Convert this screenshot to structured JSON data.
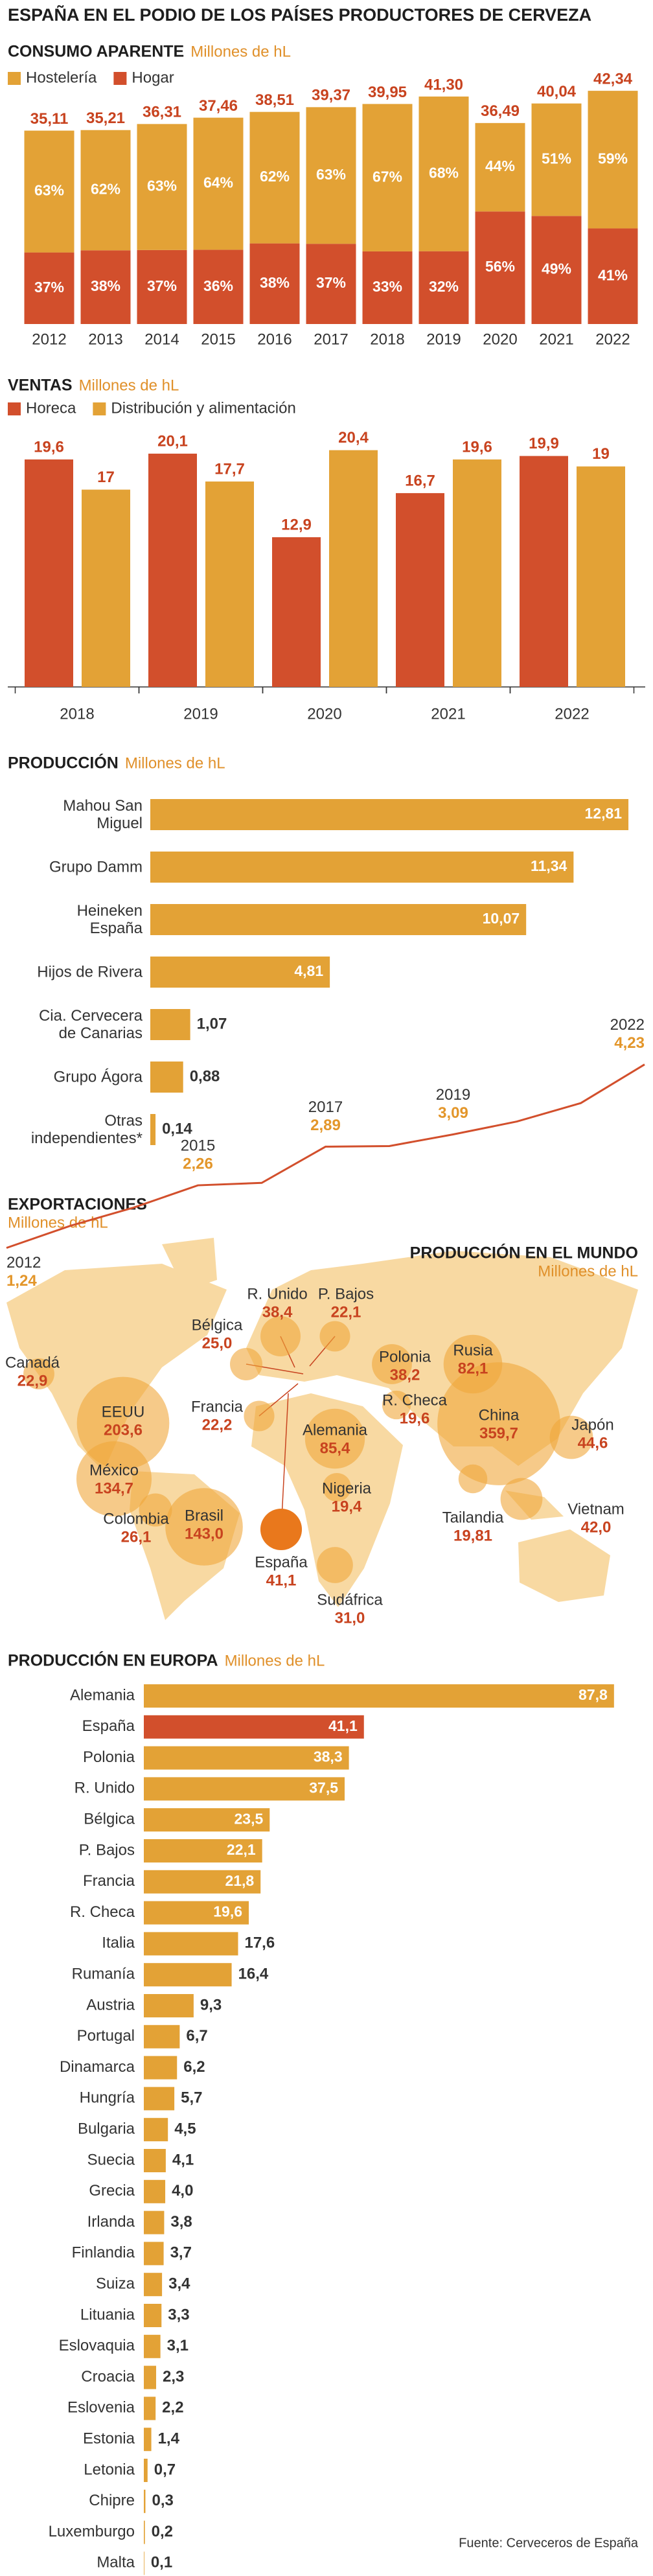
{
  "title": "ESPAÑA EN EL PODIO DE LOS PAÍSES PRODUCTORES DE CERVEZA",
  "source": "Fuente: Cerveceros de España",
  "chart_data": [
    {
      "type": "stacked-percent-bar",
      "title": "CONSUMO APARENTE",
      "subtitle": "Millones de hL",
      "categories": [
        "2012",
        "2013",
        "2014",
        "2015",
        "2016",
        "2017",
        "2018",
        "2019",
        "2020",
        "2021",
        "2022"
      ],
      "totals": [
        35.11,
        35.21,
        36.31,
        37.46,
        38.51,
        39.37,
        39.95,
        41.3,
        36.49,
        40.04,
        42.34
      ],
      "total_labels": [
        "35,11",
        "35,21",
        "36,31",
        "37,46",
        "38,51",
        "39,37",
        "39,95",
        "41,30",
        "36,49",
        "40,04",
        "42,34"
      ],
      "series": [
        {
          "name": "Hostelería",
          "color": "#e3a236",
          "values": [
            63,
            62,
            63,
            64,
            62,
            63,
            67,
            68,
            44,
            51,
            59
          ],
          "value_labels": [
            "63%",
            "62%",
            "63%",
            "64%",
            "62%",
            "63%",
            "67%",
            "68%",
            "44%",
            "51%",
            "59%"
          ]
        },
        {
          "name": "Hogar",
          "color": "#d24f2c",
          "values": [
            37,
            38,
            37,
            36,
            38,
            37,
            33,
            32,
            56,
            49,
            41
          ],
          "value_labels": [
            "37%",
            "38%",
            "37%",
            "36%",
            "38%",
            "37%",
            "33%",
            "32%",
            "56%",
            "49%",
            "41%"
          ]
        }
      ],
      "ylim": [
        0,
        45
      ]
    },
    {
      "type": "grouped-bar",
      "title": "VENTAS",
      "subtitle": "Millones de hL",
      "categories": [
        "2018",
        "2019",
        "2020",
        "2021",
        "2022"
      ],
      "series": [
        {
          "name": "Horeca",
          "color": "#d24f2c",
          "values": [
            19.6,
            20.1,
            12.9,
            16.7,
            19.9
          ],
          "value_labels": [
            "19,6",
            "20,1",
            "12,9",
            "16,7",
            "19,9"
          ]
        },
        {
          "name": "Distribución y alimentación",
          "color": "#e3a236",
          "values": [
            17,
            17.7,
            20.4,
            19.6,
            19
          ],
          "value_labels": [
            "17",
            "17,7",
            "20,4",
            "19,6",
            "19"
          ]
        }
      ],
      "ylim": [
        0,
        22
      ]
    },
    {
      "type": "hbar",
      "title": "PRODUCCIÓN",
      "subtitle": "Millones de hL",
      "categories": [
        "Mahou San Miguel",
        "Grupo Damm",
        "Heineken España",
        "Hijos de Rivera",
        "Cia. Cervecera de Canarias",
        "Grupo Ágora",
        "Otras independientes*"
      ],
      "values": [
        12.81,
        11.34,
        10.07,
        4.81,
        1.07,
        0.88,
        0.14
      ],
      "value_labels": [
        "12,81",
        "11,34",
        "10,07",
        "4,81",
        "1,07",
        "0,88",
        "0,14"
      ],
      "color": "#e3a236",
      "xlim": [
        0,
        13
      ]
    },
    {
      "type": "line",
      "title": "EXPORTACIONES",
      "subtitle": "Millones de hL",
      "x": [
        "2012",
        null,
        null,
        "2015",
        null,
        "2017",
        null,
        "2019",
        null,
        null,
        "2022"
      ],
      "values": [
        1.24,
        1.6,
        1.9,
        2.26,
        2.3,
        2.89,
        2.9,
        3.09,
        3.3,
        3.6,
        4.23
      ],
      "value_labels": [
        "1,24",
        null,
        null,
        "2,26",
        null,
        "2,89",
        null,
        "3,09",
        null,
        null,
        "4,23"
      ],
      "color": "#d24f2c",
      "ylim": [
        0,
        6
      ]
    },
    {
      "type": "bubble-map",
      "title": "PRODUCCIÓN EN EL MUNDO",
      "subtitle": "Millones de hL",
      "categories": [
        "R. Unido",
        "P. Bajos",
        "Bélgica",
        "Francia",
        "Canadá",
        "EEUU",
        "México",
        "Colombia",
        "Brasil",
        "España",
        "Alemania",
        "R. Checa",
        "Polonia",
        "Rusia",
        "China",
        "Japón",
        "Nigeria",
        "Sudáfrica",
        "Tailandia",
        "Vietnam"
      ],
      "values": [
        38.4,
        22.1,
        25.0,
        22.2,
        22.9,
        203.6,
        134.7,
        26.1,
        143.0,
        41.1,
        85.4,
        19.6,
        38.2,
        82.1,
        359.7,
        44.6,
        19.4,
        31.0,
        19.81,
        42.0
      ],
      "value_labels": [
        "38,4",
        "22,1",
        "25,0",
        "22,2",
        "22,9",
        "203,6",
        "134,7",
        "26,1",
        "143,0",
        "41,1",
        "85,4",
        "19,6",
        "38,2",
        "82,1",
        "359,7",
        "44,6",
        "19,4",
        "31,0",
        "19,81",
        "42,0"
      ],
      "colors": [
        "#f0a73a",
        "#f0a73a",
        "#f0a73a",
        "#f0a73a",
        "#f0a73a",
        "#f0a73a",
        "#f0a73a",
        "#f0a73a",
        "#f0a73a",
        "#e9781c",
        "#f0a73a",
        "#f0a73a",
        "#f0a73a",
        "#f0a73a",
        "#f0a73a",
        "#f0a73a",
        "#f0a73a",
        "#f0a73a",
        "#f0a73a",
        "#f0a73a"
      ]
    },
    {
      "type": "hbar",
      "title": "PRODUCCIÓN EN EUROPA",
      "subtitle": "Millones de hL",
      "categories": [
        "Alemania",
        "España",
        "Polonia",
        "R. Unido",
        "Bélgica",
        "P. Bajos",
        "Francia",
        "R. Checa",
        "Italia",
        "Rumanía",
        "Austria",
        "Portugal",
        "Dinamarca",
        "Hungría",
        "Bulgaria",
        "Suecia",
        "Grecia",
        "Irlanda",
        "Finlandia",
        "Suiza",
        "Lituania",
        "Eslovaquia",
        "Croacia",
        "Eslovenia",
        "Estonia",
        "Letonia",
        "Chipre",
        "Luxemburgo",
        "Malta"
      ],
      "values": [
        87.8,
        41.1,
        38.3,
        37.5,
        23.5,
        22.1,
        21.8,
        19.6,
        17.6,
        16.4,
        9.3,
        6.7,
        6.2,
        5.7,
        4.5,
        4.1,
        4.0,
        3.8,
        3.7,
        3.4,
        3.3,
        3.1,
        2.3,
        2.2,
        1.4,
        0.7,
        0.3,
        0.2,
        0.1
      ],
      "value_labels": [
        "87,8",
        "41,1",
        "38,3",
        "37,5",
        "23,5",
        "22,1",
        "21,8",
        "19,6",
        "17,6",
        "16,4",
        "9,3",
        "6,7",
        "6,2",
        "5,7",
        "4,5",
        "4,1",
        "4,0",
        "3,8",
        "3,7",
        "3,4",
        "3,3",
        "3,1",
        "2,3",
        "2,2",
        "1,4",
        "0,7",
        "0,3",
        "0,2",
        "0,1"
      ],
      "colors": [
        "#e3a236",
        "#d24f2c",
        "#e3a236",
        "#e3a236",
        "#e3a236",
        "#e3a236",
        "#e3a236",
        "#e3a236",
        "#e3a236",
        "#e3a236",
        "#e3a236",
        "#e3a236",
        "#e3a236",
        "#e3a236",
        "#e3a236",
        "#e3a236",
        "#e3a236",
        "#e3a236",
        "#e3a236",
        "#e3a236",
        "#e3a236",
        "#e3a236",
        "#e3a236",
        "#e3a236",
        "#e3a236",
        "#e3a236",
        "#e3a236",
        "#e3a236",
        "#e3a236"
      ],
      "xlim": [
        0,
        90
      ]
    }
  ]
}
